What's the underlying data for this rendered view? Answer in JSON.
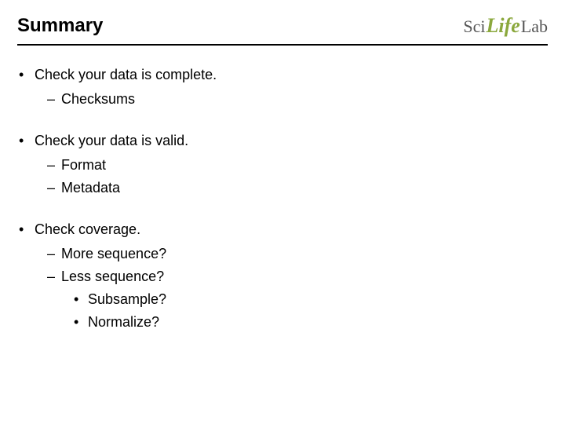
{
  "title": "Summary",
  "logo": {
    "sci": "Sci",
    "life": "Life",
    "lab": "Lab"
  },
  "colors": {
    "text": "#000000",
    "logo_accent": "#8ba83d",
    "logo_gray": "#555555",
    "bg": "#ffffff",
    "divider": "#000000"
  },
  "typography": {
    "title_fontsize": 24,
    "body_fontsize": 18,
    "title_weight": "bold"
  },
  "bullets": [
    {
      "text": "Check your data is complete.",
      "children": [
        {
          "text": "Checksums"
        }
      ]
    },
    {
      "text": "Check your data is valid.",
      "children": [
        {
          "text": "Format"
        },
        {
          "text": "Metadata"
        }
      ]
    },
    {
      "text": "Check coverage.",
      "children": [
        {
          "text": "More sequence?"
        },
        {
          "text": "Less sequence?",
          "children": [
            {
              "text": "Subsample?"
            },
            {
              "text": "Normalize?"
            }
          ]
        }
      ]
    }
  ]
}
